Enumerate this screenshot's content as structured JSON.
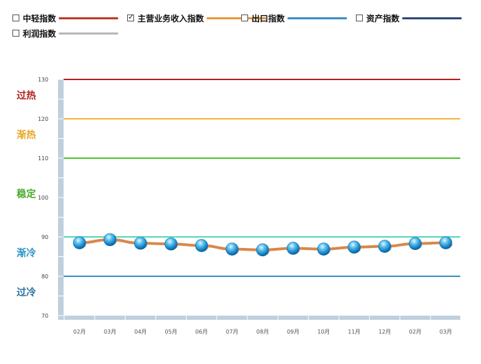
{
  "legend": [
    {
      "label": "中轻指数",
      "checked": false,
      "color": "#c0392b"
    },
    {
      "label": "主营业务收入指数",
      "checked": true,
      "color": "#e8973a"
    },
    {
      "label": "出口指数",
      "checked": false,
      "color": "#3a8fc4"
    },
    {
      "label": "资产指数",
      "checked": false,
      "color": "#2c4a78"
    },
    {
      "label": "利润指数",
      "checked": false,
      "color": "#b8b8b8"
    }
  ],
  "chart_data": {
    "type": "line",
    "categories": [
      "02月",
      "03月",
      "04月",
      "05月",
      "06月",
      "07月",
      "08月",
      "09月",
      "10月",
      "11月",
      "12月",
      "02月",
      "03月"
    ],
    "series": [
      {
        "name": "主营业务收入指数",
        "color": "#d9874a",
        "values": [
          88.5,
          89.3,
          88.4,
          88.2,
          87.8,
          86.9,
          86.7,
          87.1,
          86.9,
          87.4,
          87.6,
          88.3,
          88.5
        ]
      }
    ],
    "ylim": [
      70,
      130
    ],
    "yticks": [
      70,
      80,
      90,
      100,
      110,
      120,
      130
    ],
    "thresholds": [
      {
        "value": 130,
        "color": "#b22222"
      },
      {
        "value": 120,
        "color": "#f2b53a"
      },
      {
        "value": 110,
        "color": "#4fc22e"
      },
      {
        "value": 90,
        "color": "#55d6b8"
      },
      {
        "value": 80,
        "color": "#3b8fc6"
      }
    ],
    "zones": [
      {
        "label": "过热",
        "color": "#b22222",
        "at": 126
      },
      {
        "label": "渐热",
        "color": "#e6a824",
        "at": 116
      },
      {
        "label": "稳定",
        "color": "#4aa82c",
        "at": 101
      },
      {
        "label": "渐冷",
        "color": "#2a93c2",
        "at": 86
      },
      {
        "label": "过冷",
        "color": "#2a6f9e",
        "at": 76
      }
    ],
    "grid": false
  }
}
